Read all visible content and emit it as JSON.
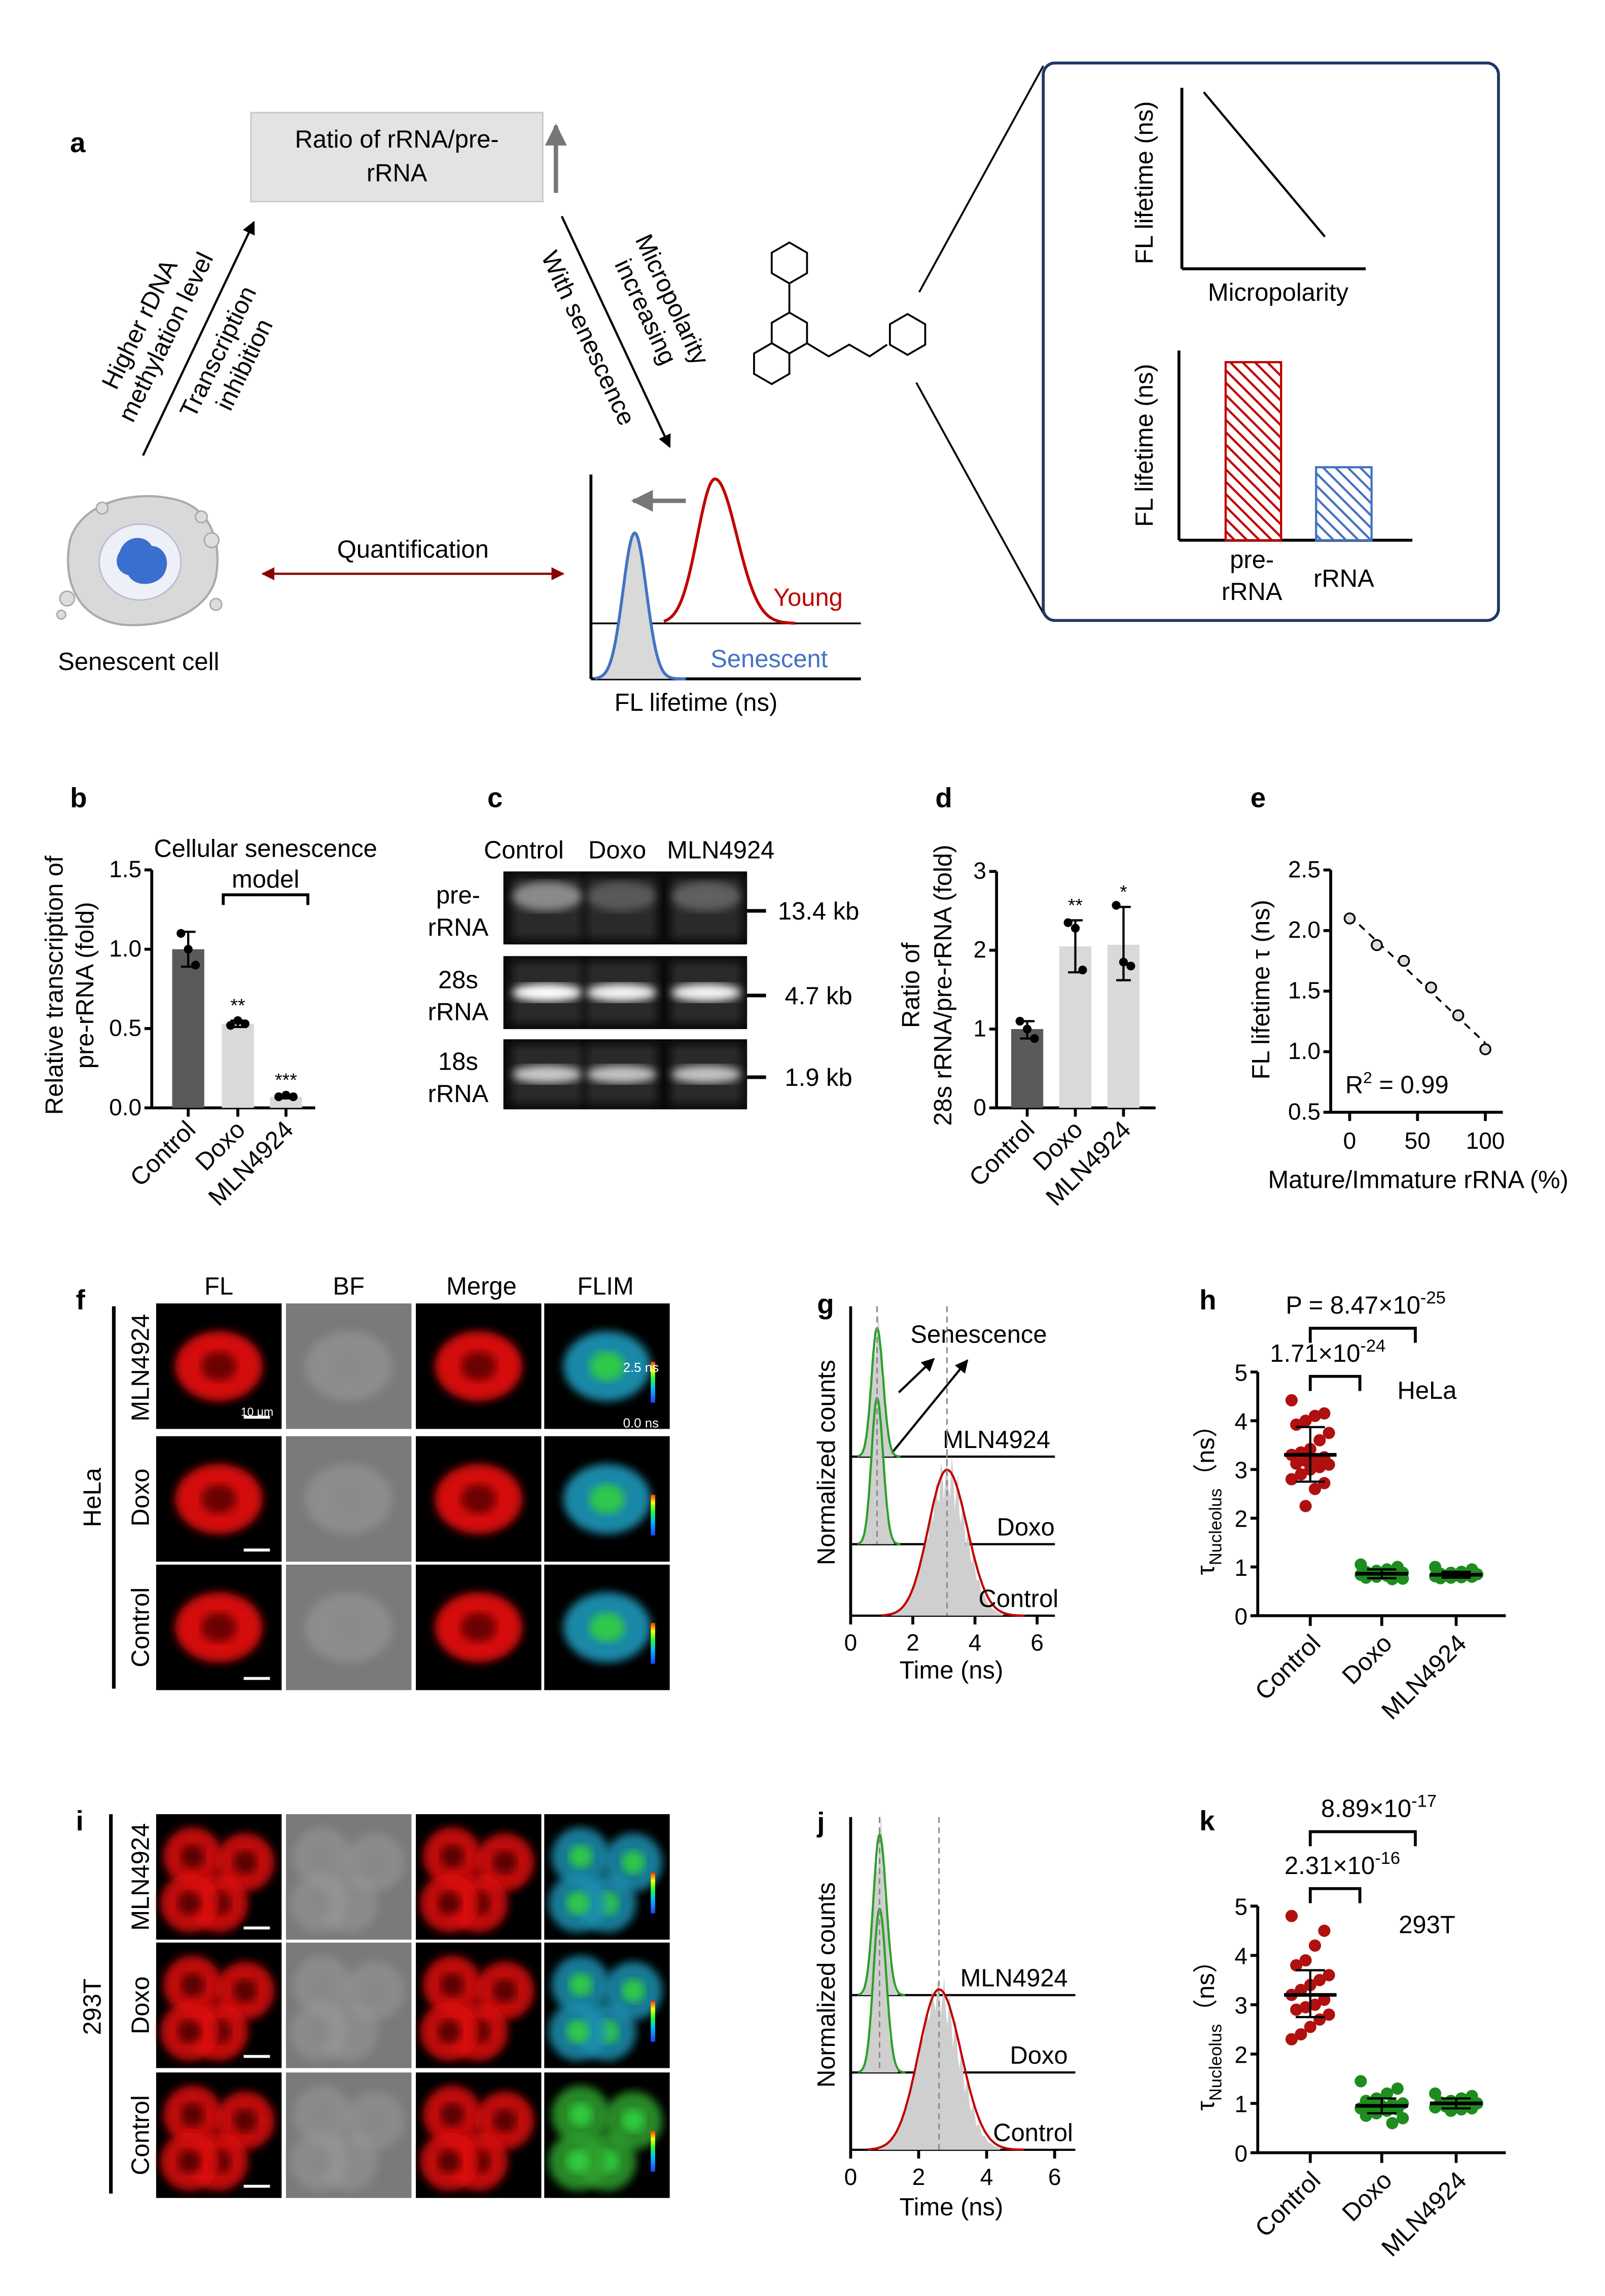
{
  "panel_labels": {
    "a": "a",
    "b": "b",
    "c": "c",
    "d": "d",
    "e": "e",
    "f": "f",
    "g": "g",
    "h": "h",
    "i": "i",
    "j": "j",
    "k": "k"
  },
  "panel_a": {
    "ratio_box": [
      "Ratio of rRNA/pre-",
      "rRNA"
    ],
    "left_arrow_text_1": [
      "Higher rDNA",
      "methylation level"
    ],
    "left_arrow_text_2": [
      "Transcription",
      "inhibition"
    ],
    "right_arrow_text_1": [
      "Micropolarity",
      "increasing"
    ],
    "right_arrow_text_2": "With senescence",
    "cell_label": "Senescent cell",
    "quantification": "Quantification",
    "young": "Young",
    "senescent": "Senescent",
    "mini_xlabel": "FL lifetime (ns)",
    "inset_ylabel_1": "FL lifetime (ns)",
    "inset_xlabel_1": "Micropolarity",
    "inset_ylabel_2": "FL lifetime (ns)",
    "inset_bar_labels": [
      [
        "pre-",
        "rRNA"
      ],
      [
        "rRNA"
      ]
    ],
    "colors": {
      "young": "#c00000",
      "senescent": "#4472c4",
      "arrow": "#8b0000",
      "inset_border": "#1f3864"
    }
  },
  "panel_c": {
    "lanes": [
      "Control",
      "Doxo",
      "MLN4924"
    ],
    "rows": [
      {
        "label": [
          "pre-",
          "rRNA"
        ],
        "size": "13.4 kb"
      },
      {
        "label": [
          "28s",
          "rRNA"
        ],
        "size": "4.7 kb"
      },
      {
        "label": [
          "18s",
          "rRNA"
        ],
        "size": "1.9 kb"
      }
    ]
  },
  "panel_f": {
    "columns": [
      "FL",
      "BF",
      "Merge",
      "FLIM"
    ],
    "rows": [
      "MLN4924",
      "Doxo",
      "Control"
    ],
    "cell_line": "HeLa",
    "scale_bar": "10 μm",
    "flim_max": "2.5 ns",
    "flim_min": "0.0 ns"
  },
  "panel_i": {
    "rows": [
      "MLN4924",
      "Doxo",
      "Control"
    ],
    "cell_line": "293T"
  },
  "chart_data": [
    {
      "id": "b",
      "type": "bar",
      "title": [
        "Cellular senescence",
        "model"
      ],
      "ylabel": [
        "Relative  transcription of",
        "pre-rRNA (fold)"
      ],
      "categories": [
        "Control",
        "Doxo",
        "MLN4924"
      ],
      "values": [
        1.0,
        0.53,
        0.07
      ],
      "error": [
        [
          0.89,
          1.11
        ],
        [
          0.51,
          0.55
        ],
        [
          0.06,
          0.08
        ]
      ],
      "points": [
        [
          1.1,
          1.0,
          0.9
        ],
        [
          0.52,
          0.55,
          0.53
        ],
        [
          0.07,
          0.08,
          0.07
        ]
      ],
      "significance": [
        "",
        "**",
        "***"
      ],
      "ylim": [
        0,
        1.5
      ],
      "yticks": [
        0,
        0.5,
        1,
        1.5
      ],
      "ytick_labels": [
        "0.0",
        "0.5",
        "1.0",
        "1.5"
      ],
      "bar_colors": [
        "#5a5a5a",
        "#d9d9d9",
        "#d9d9d9"
      ]
    },
    {
      "id": "d",
      "type": "bar",
      "ylabel": [
        "Ratio of",
        "28s rRNA/pre-rRNA (fold)"
      ],
      "categories": [
        "Control",
        "Doxo",
        "MLN4924"
      ],
      "values": [
        1.0,
        2.05,
        2.07
      ],
      "error": [
        [
          0.88,
          1.1
        ],
        [
          1.72,
          2.38
        ],
        [
          1.62,
          2.55
        ]
      ],
      "points": [
        [
          1.1,
          1.0,
          0.88
        ],
        [
          2.35,
          2.28,
          1.75
        ],
        [
          2.57,
          1.85,
          1.8
        ]
      ],
      "significance": [
        "",
        "**",
        "*"
      ],
      "ylim": [
        0,
        3
      ],
      "yticks": [
        0,
        1,
        2,
        3
      ],
      "ytick_labels": [
        "0",
        "1",
        "2",
        "3"
      ],
      "bar_colors": [
        "#5a5a5a",
        "#d9d9d9",
        "#d9d9d9"
      ]
    },
    {
      "id": "e",
      "type": "scatter",
      "xlabel": "Mature/Immature rRNA (%)",
      "ylabel": "FL lifetime τ (ns)",
      "x": [
        0,
        20,
        40,
        60,
        80,
        100
      ],
      "y": [
        2.1,
        1.88,
        1.75,
        1.53,
        1.3,
        1.02
      ],
      "fit": "dashed linear",
      "annotation": {
        "base": "R",
        "sup": "2",
        "rest": " = 0.99"
      },
      "xlim": [
        0,
        100
      ],
      "ylim": [
        0.5,
        2.5
      ],
      "xticks": [
        0,
        50,
        100
      ],
      "yticks": [
        0.5,
        1.0,
        1.5,
        2.0,
        2.5
      ],
      "ytick_labels": [
        "0.5",
        "1.0",
        "1.5",
        "2.0",
        "2.5"
      ]
    },
    {
      "id": "g",
      "type": "area",
      "xlabel": "Time (ns)",
      "ylabel": "Normalized counts",
      "annotation": "Senescence",
      "xticks": [
        0,
        2,
        4,
        6
      ],
      "xlim": [
        0,
        6.5
      ],
      "series": [
        {
          "name": "MLN4924",
          "peak_ns": 0.85,
          "color": "#2ca02c"
        },
        {
          "name": "Doxo",
          "peak_ns": 0.85,
          "color": "#2ca02c"
        },
        {
          "name": "Control",
          "peak_ns": 3.1,
          "color": "#c00000"
        }
      ]
    },
    {
      "id": "h",
      "type": "scatter",
      "ylabel": {
        "base": "τ",
        "sub": "Nucleolus",
        "unit": "（ns）"
      },
      "group": "HeLa",
      "categories": [
        "Control",
        "Doxo",
        "MLN4924"
      ],
      "points": [
        [
          4.42,
          4.15,
          4.1,
          4.0,
          3.92,
          3.75,
          3.6,
          3.42,
          3.35,
          3.3,
          3.25,
          3.2,
          3.18,
          3.12,
          3.1,
          3.05,
          3.0,
          2.9,
          2.8,
          2.72,
          2.6,
          2.25
        ],
        [
          1.05,
          1.0,
          0.95,
          0.92,
          0.9,
          0.88,
          0.87,
          0.86,
          0.85,
          0.84,
          0.83,
          0.82,
          0.8,
          0.78,
          0.76,
          0.75
        ],
        [
          1.0,
          0.95,
          0.9,
          0.88,
          0.86,
          0.85,
          0.84,
          0.83,
          0.82,
          0.81,
          0.8,
          0.79,
          0.78,
          0.77
        ]
      ],
      "mean": [
        3.3,
        0.86,
        0.84
      ],
      "sd": [
        [
          2.75,
          3.87
        ],
        [
          0.77,
          0.95
        ],
        [
          0.78,
          0.9
        ]
      ],
      "comparisons": [
        {
          "pair": [
            "Control",
            "MLN4924"
          ],
          "base": "P = 8.47×10",
          "exp": "-25"
        },
        {
          "pair": [
            "Control",
            "Doxo"
          ],
          "base": "1.71×10",
          "exp": "-24"
        }
      ],
      "ylim": [
        0,
        5
      ],
      "yticks": [
        0,
        1,
        2,
        3,
        4,
        5
      ],
      "colors": [
        "#b01010",
        "#1e8c1e",
        "#1e8c1e"
      ]
    },
    {
      "id": "j",
      "type": "area",
      "xlabel": "Time (ns)",
      "ylabel": "Normalized counts",
      "xticks": [
        0,
        2,
        4,
        6
      ],
      "xlim": [
        0,
        6.5
      ],
      "series": [
        {
          "name": "MLN4924",
          "peak_ns": 0.85,
          "color": "#2ca02c"
        },
        {
          "name": "Doxo",
          "peak_ns": 0.85,
          "color": "#2ca02c"
        },
        {
          "name": "Control",
          "peak_ns": 2.6,
          "color": "#c00000"
        }
      ]
    },
    {
      "id": "k",
      "type": "scatter",
      "ylabel": {
        "base": "τ",
        "sub": "Nucleolus",
        "unit": "（ns）"
      },
      "group": "293T",
      "categories": [
        "Control",
        "Doxo",
        "MLN4924"
      ],
      "points": [
        [
          4.8,
          4.5,
          4.2,
          3.9,
          3.8,
          3.6,
          3.5,
          3.4,
          3.3,
          3.2,
          3.1,
          3.0,
          2.95,
          2.9,
          2.8,
          2.7,
          2.55,
          2.4,
          2.3
        ],
        [
          1.45,
          1.3,
          1.2,
          1.1,
          1.05,
          1.0,
          0.98,
          0.95,
          0.92,
          0.9,
          0.88,
          0.85,
          0.8,
          0.75,
          0.7,
          0.6
        ],
        [
          1.2,
          1.15,
          1.1,
          1.05,
          1.02,
          1.0,
          0.98,
          0.96,
          0.94,
          0.92,
          0.9,
          0.88,
          0.85
        ]
      ],
      "mean": [
        3.2,
        0.95,
        1.0
      ],
      "sd": [
        [
          2.75,
          3.7
        ],
        [
          0.8,
          1.1
        ],
        [
          0.9,
          1.1
        ]
      ],
      "comparisons": [
        {
          "pair": [
            "Control",
            "MLN4924"
          ],
          "base": "8.89×10",
          "exp": "-17"
        },
        {
          "pair": [
            "Control",
            "Doxo"
          ],
          "base": "2.31×10",
          "exp": "-16"
        }
      ],
      "ylim": [
        0,
        5
      ],
      "yticks": [
        0,
        1,
        2,
        3,
        4,
        5
      ],
      "colors": [
        "#b01010",
        "#1e8c1e",
        "#1e8c1e"
      ]
    }
  ]
}
